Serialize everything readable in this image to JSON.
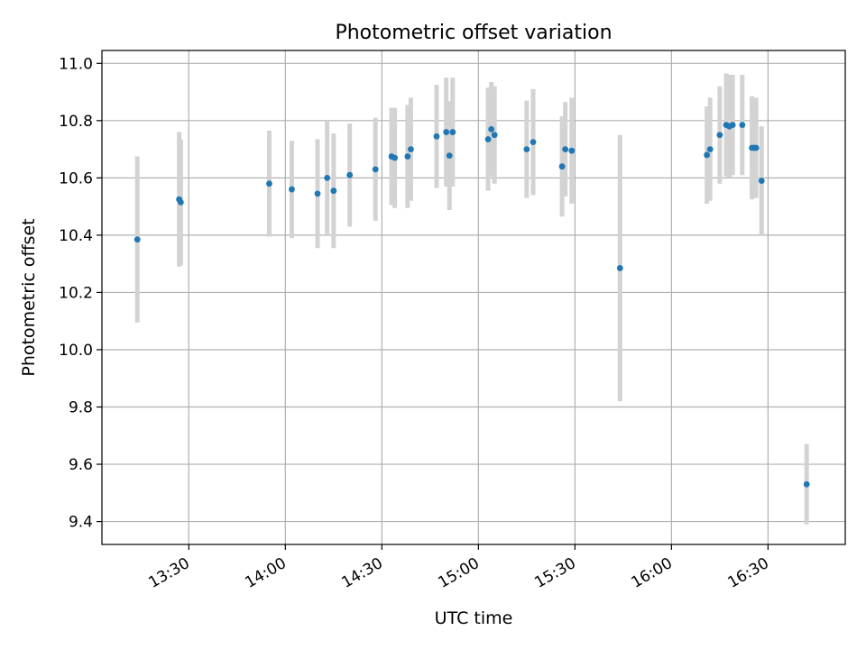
{
  "chart_data": {
    "type": "scatter",
    "title": "Photometric offset variation",
    "xlabel": "UTC time",
    "ylabel": "Photometric offset",
    "xlim": [
      "13:03",
      "16:54"
    ],
    "ylim": [
      9.32,
      11.045
    ],
    "x_ticks": [
      "13:30",
      "14:00",
      "14:30",
      "15:00",
      "15:30",
      "16:00",
      "16:30"
    ],
    "y_ticks": [
      9.4,
      9.6,
      9.8,
      10.0,
      10.2,
      10.4,
      10.6,
      10.8,
      11.0
    ],
    "grid": true,
    "point_color": "#1f77b4",
    "errorbar_color": "#d3d3d3",
    "series": [
      {
        "points": [
          {
            "t": "13:14",
            "y": 10.385,
            "err": 0.29
          },
          {
            "t": "13:27",
            "y": 10.525,
            "err": 0.235
          },
          {
            "t": "13:27.5",
            "y": 10.515,
            "err": 0.22
          },
          {
            "t": "13:55",
            "y": 10.58,
            "err": 0.185
          },
          {
            "t": "14:02",
            "y": 10.56,
            "err": 0.17
          },
          {
            "t": "14:10",
            "y": 10.545,
            "err": 0.19
          },
          {
            "t": "14:13",
            "y": 10.6,
            "err": 0.2
          },
          {
            "t": "14:15",
            "y": 10.555,
            "err": 0.2
          },
          {
            "t": "14:20",
            "y": 10.61,
            "err": 0.18
          },
          {
            "t": "14:28",
            "y": 10.63,
            "err": 0.18
          },
          {
            "t": "14:33",
            "y": 10.675,
            "err": 0.17
          },
          {
            "t": "14:34",
            "y": 10.67,
            "err": 0.175
          },
          {
            "t": "14:38",
            "y": 10.675,
            "err": 0.18
          },
          {
            "t": "14:39",
            "y": 10.7,
            "err": 0.18
          },
          {
            "t": "14:47",
            "y": 10.745,
            "err": 0.18
          },
          {
            "t": "14:50",
            "y": 10.76,
            "err": 0.19
          },
          {
            "t": "14:51",
            "y": 10.678,
            "err": 0.19
          },
          {
            "t": "14:52",
            "y": 10.76,
            "err": 0.19
          },
          {
            "t": "15:03",
            "y": 10.735,
            "err": 0.18
          },
          {
            "t": "15:04",
            "y": 10.77,
            "err": 0.165
          },
          {
            "t": "15:05",
            "y": 10.75,
            "err": 0.17
          },
          {
            "t": "15:15",
            "y": 10.7,
            "err": 0.17
          },
          {
            "t": "15:17",
            "y": 10.725,
            "err": 0.185
          },
          {
            "t": "15:26",
            "y": 10.64,
            "err": 0.175
          },
          {
            "t": "15:27",
            "y": 10.7,
            "err": 0.165
          },
          {
            "t": "15:29",
            "y": 10.695,
            "err": 0.185
          },
          {
            "t": "15:44",
            "y": 10.285,
            "err": 0.465
          },
          {
            "t": "16:11",
            "y": 10.68,
            "err": 0.17
          },
          {
            "t": "16:12",
            "y": 10.7,
            "err": 0.18
          },
          {
            "t": "16:15",
            "y": 10.75,
            "err": 0.17
          },
          {
            "t": "16:17",
            "y": 10.785,
            "err": 0.18
          },
          {
            "t": "16:18",
            "y": 10.78,
            "err": 0.18
          },
          {
            "t": "16:19",
            "y": 10.785,
            "err": 0.175
          },
          {
            "t": "16:22",
            "y": 10.785,
            "err": 0.175
          },
          {
            "t": "16:25",
            "y": 10.705,
            "err": 0.18
          },
          {
            "t": "16:25.7",
            "y": 10.705,
            "err": 0.17
          },
          {
            "t": "16:26.3",
            "y": 10.705,
            "err": 0.175
          },
          {
            "t": "16:28",
            "y": 10.59,
            "err": 0.19
          },
          {
            "t": "16:42",
            "y": 9.53,
            "err": 0.14
          }
        ]
      }
    ]
  }
}
